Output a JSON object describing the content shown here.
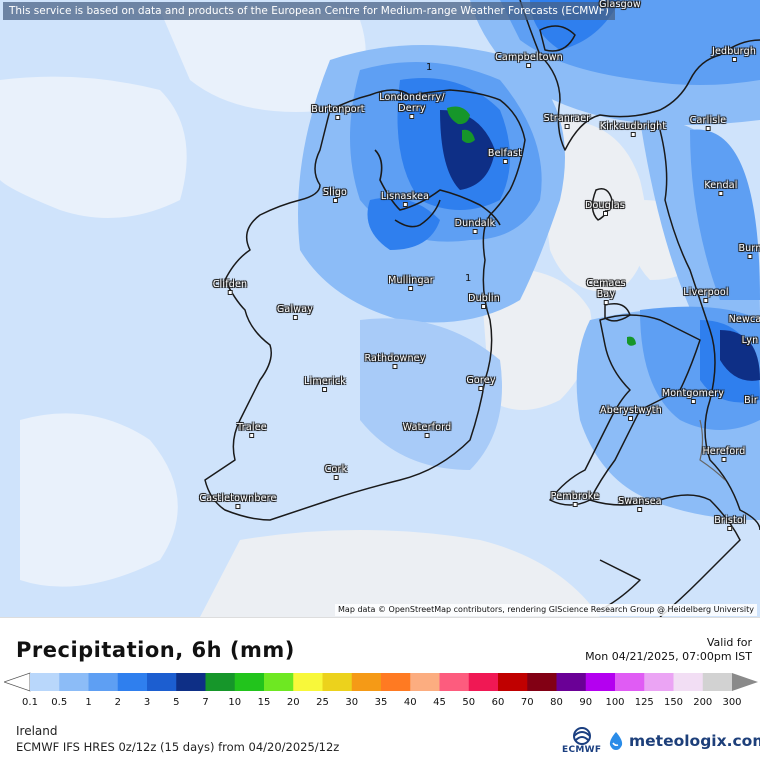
{
  "map": {
    "attribution_top": "This service is based on data and products of the European Centre for Medium-range Weather Forecasts (ECMWF)",
    "attribution_bottom": "Map data © OpenStreetMap contributors, rendering GIScience Research Group @ Heidelberg University",
    "contour_labels": [
      "1",
      "1"
    ],
    "cities": [
      {
        "name": "Glasgow",
        "id": "glasgow"
      },
      {
        "name": "Campbeltown",
        "id": "campbeltown"
      },
      {
        "name": "Jedburgh",
        "id": "jedburgh"
      },
      {
        "name": "Londonderry/",
        "id": "londonderry"
      },
      {
        "name": "Derry",
        "id": "derry"
      },
      {
        "name": "Burtonport",
        "id": "burtonport"
      },
      {
        "name": "Stranraer",
        "id": "stranraer"
      },
      {
        "name": "Kirkcudbright",
        "id": "kirkcudbright"
      },
      {
        "name": "Carlisle",
        "id": "carlisle"
      },
      {
        "name": "Belfast",
        "id": "belfast"
      },
      {
        "name": "Sligo",
        "id": "sligo"
      },
      {
        "name": "Lisnaskea",
        "id": "lisnaskea"
      },
      {
        "name": "Kendal",
        "id": "kendal"
      },
      {
        "name": "Douglas",
        "id": "douglas"
      },
      {
        "name": "Dundalk",
        "id": "dundalk"
      },
      {
        "name": "Burn",
        "id": "burn"
      },
      {
        "name": "Mullingar",
        "id": "mullingar"
      },
      {
        "name": "Clifden",
        "id": "clifden"
      },
      {
        "name": "Cemaes",
        "id": "cemaes"
      },
      {
        "name": "Bay",
        "id": "bay"
      },
      {
        "name": "Dublin",
        "id": "dublin"
      },
      {
        "name": "Liverpool",
        "id": "liverpool"
      },
      {
        "name": "Galway",
        "id": "galway"
      },
      {
        "name": "Newca",
        "id": "newcastle"
      },
      {
        "name": "Lyn",
        "id": "lyn"
      },
      {
        "name": "Rathdowney",
        "id": "rathdowney"
      },
      {
        "name": "Limerick",
        "id": "limerick"
      },
      {
        "name": "Gorey",
        "id": "gorey"
      },
      {
        "name": "Montgomery",
        "id": "montgomery"
      },
      {
        "name": "Bir",
        "id": "bir"
      },
      {
        "name": "Aberystwyth",
        "id": "aberystwyth"
      },
      {
        "name": "Tralee",
        "id": "tralee"
      },
      {
        "name": "Waterford",
        "id": "waterford"
      },
      {
        "name": "Hereford",
        "id": "hereford"
      },
      {
        "name": "Cork",
        "id": "cork"
      },
      {
        "name": "Castletownbere",
        "id": "castletownbere"
      },
      {
        "name": "Pembroke",
        "id": "pembroke"
      },
      {
        "name": "Swansea",
        "id": "swansea"
      },
      {
        "name": "Bristol",
        "id": "bristol"
      }
    ]
  },
  "legend": {
    "title": "Precipitation, 6h (mm)",
    "valid_label": "Valid for",
    "valid_time": "Mon 04/21/2025, 07:00pm IST",
    "ticks": [
      "0.1",
      "0.5",
      "1",
      "2",
      "3",
      "5",
      "7",
      "10",
      "15",
      "20",
      "25",
      "30",
      "35",
      "40",
      "45",
      "50",
      "60",
      "70",
      "80",
      "90",
      "100",
      "125",
      "150",
      "200",
      "300"
    ],
    "colors": [
      "#b9d7fb",
      "#8cbcf7",
      "#5e9ff3",
      "#2f7fee",
      "#1c5ed0",
      "#0e2f86",
      "#16962a",
      "#22c41c",
      "#6ee822",
      "#f8f83a",
      "#ecd21c",
      "#f59a16",
      "#ff7a22",
      "#fcad80",
      "#fd5c7e",
      "#f01854",
      "#c00000",
      "#820014",
      "#6a0096",
      "#b400f0",
      "#e05cf4",
      "#eba4f4",
      "#f2def4",
      "#d2d2d2"
    ],
    "region": "Ireland",
    "model": "ECMWF IFS HRES 0z/12z (15 days) from  04/20/2025/12z",
    "logo_ecmwf": "ECMWF",
    "logo_meteologix": "meteologix.com"
  }
}
